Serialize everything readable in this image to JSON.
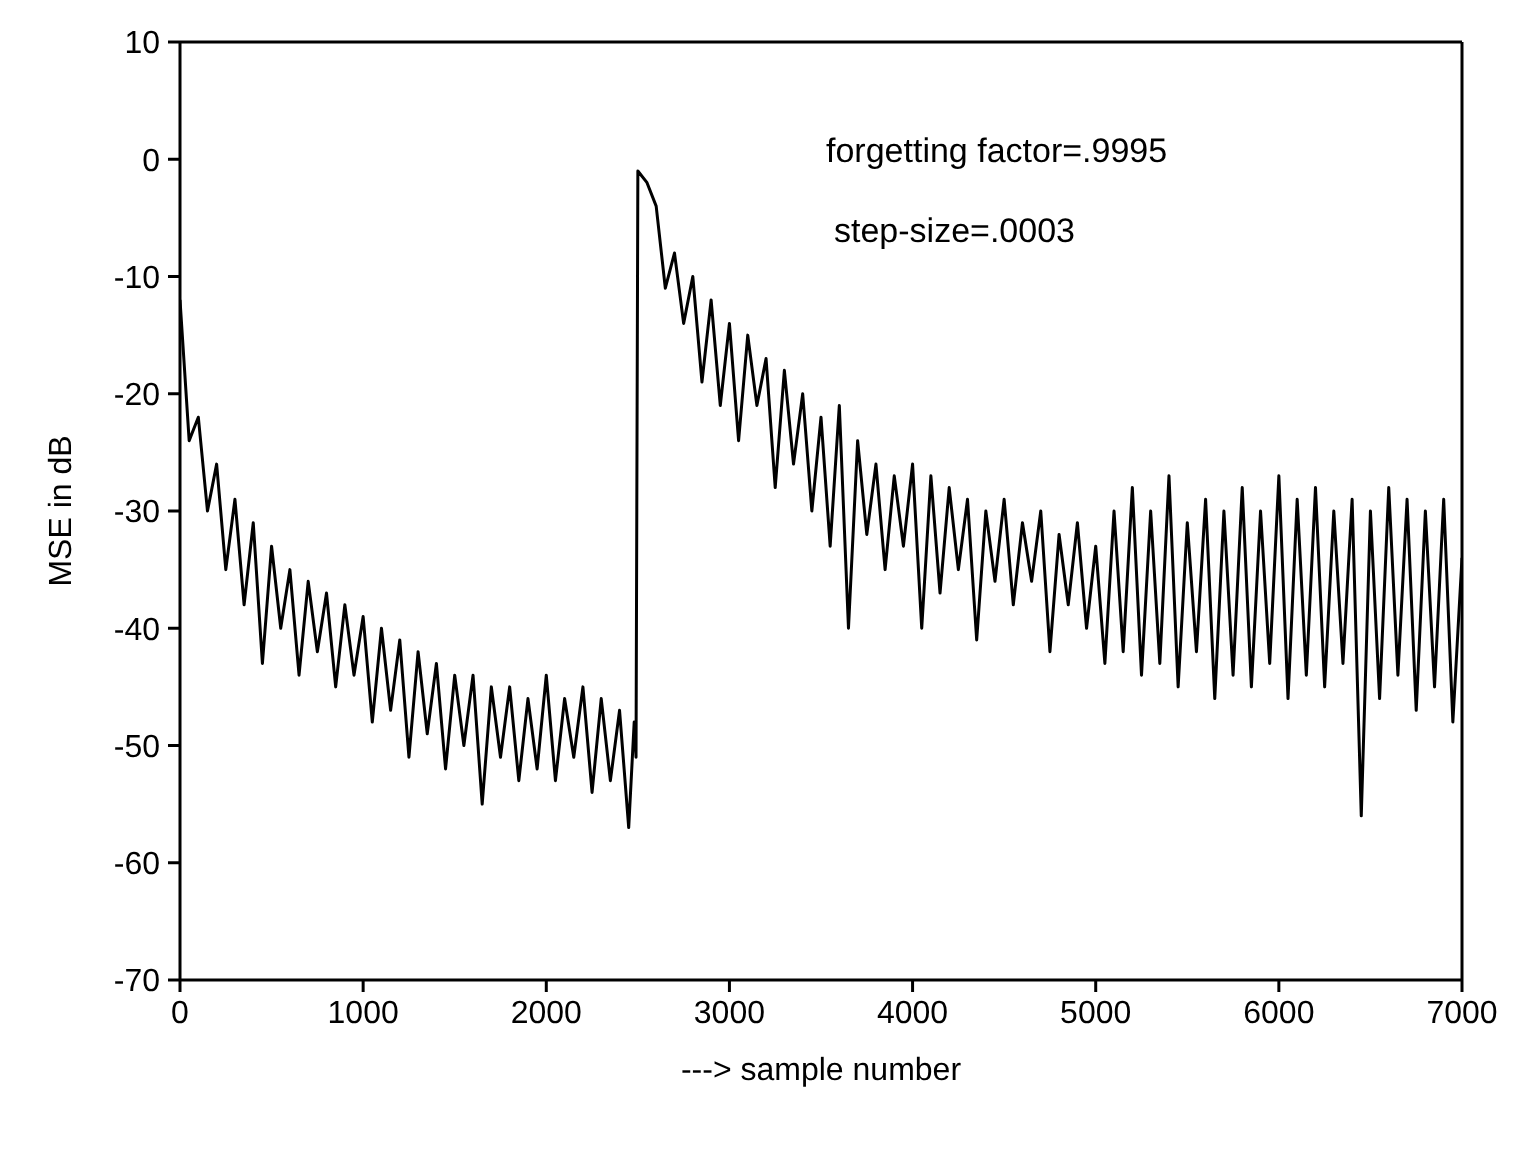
{
  "chart_data": {
    "type": "line",
    "xlabel": "---> sample number",
    "ylabel": "MSE in dB",
    "annotations": [
      "forgetting factor=.9995",
      "step-size=.0003"
    ],
    "xlim": [
      0,
      7000
    ],
    "xticks": [
      0,
      1000,
      2000,
      3000,
      4000,
      5000,
      6000,
      7000
    ],
    "ylim": [
      -70,
      10
    ],
    "yticks": [
      -70,
      -60,
      -50,
      -40,
      -30,
      -20,
      -10,
      0,
      10
    ],
    "grid": false,
    "legend": false,
    "marker": "none",
    "line_style": "solid",
    "x": [
      0,
      50,
      100,
      150,
      200,
      250,
      300,
      350,
      400,
      450,
      500,
      550,
      600,
      650,
      700,
      750,
      800,
      850,
      900,
      950,
      1000,
      1050,
      1100,
      1150,
      1200,
      1250,
      1300,
      1350,
      1400,
      1450,
      1500,
      1550,
      1600,
      1650,
      1700,
      1750,
      1800,
      1850,
      1900,
      1950,
      2000,
      2050,
      2100,
      2150,
      2200,
      2250,
      2300,
      2350,
      2400,
      2450,
      2480,
      2490,
      2500,
      2550,
      2600,
      2650,
      2700,
      2750,
      2800,
      2850,
      2900,
      2950,
      3000,
      3050,
      3100,
      3150,
      3200,
      3250,
      3300,
      3350,
      3400,
      3450,
      3500,
      3550,
      3600,
      3650,
      3700,
      3750,
      3800,
      3850,
      3900,
      3950,
      4000,
      4050,
      4100,
      4150,
      4200,
      4250,
      4300,
      4350,
      4400,
      4450,
      4500,
      4550,
      4600,
      4650,
      4700,
      4750,
      4800,
      4850,
      4900,
      4950,
      5000,
      5050,
      5100,
      5150,
      5200,
      5250,
      5300,
      5350,
      5400,
      5450,
      5500,
      5550,
      5600,
      5650,
      5700,
      5750,
      5800,
      5850,
      5900,
      5950,
      6000,
      6050,
      6100,
      6150,
      6200,
      6250,
      6300,
      6350,
      6400,
      6450,
      6500,
      6550,
      6600,
      6650,
      6700,
      6750,
      6800,
      6850,
      6900,
      6950,
      7000
    ],
    "series": [
      {
        "color": "#000000",
        "values": [
          -12,
          -24,
          -22,
          -30,
          -26,
          -35,
          -29,
          -38,
          -31,
          -43,
          -33,
          -40,
          -35,
          -44,
          -36,
          -42,
          -37,
          -45,
          -38,
          -44,
          -39,
          -48,
          -40,
          -47,
          -41,
          -51,
          -42,
          -49,
          -43,
          -52,
          -44,
          -50,
          -44,
          -55,
          -45,
          -51,
          -45,
          -53,
          -46,
          -52,
          -44,
          -53,
          -46,
          -51,
          -45,
          -54,
          -46,
          -53,
          -47,
          -57,
          -48,
          -51,
          -1,
          -2,
          -4,
          -11,
          -8,
          -14,
          -10,
          -19,
          -12,
          -21,
          -14,
          -24,
          -15,
          -21,
          -17,
          -28,
          -18,
          -26,
          -20,
          -30,
          -22,
          -33,
          -21,
          -40,
          -24,
          -32,
          -26,
          -35,
          -27,
          -33,
          -26,
          -40,
          -27,
          -37,
          -28,
          -35,
          -29,
          -41,
          -30,
          -36,
          -29,
          -38,
          -31,
          -36,
          -30,
          -42,
          -32,
          -38,
          -31,
          -40,
          -33,
          -43,
          -30,
          -42,
          -28,
          -44,
          -30,
          -43,
          -27,
          -45,
          -31,
          -42,
          -29,
          -46,
          -30,
          -44,
          -28,
          -45,
          -30,
          -43,
          -27,
          -46,
          -29,
          -44,
          -28,
          -45,
          -30,
          -43,
          -29,
          -56,
          -30,
          -46,
          -28,
          -44,
          -29,
          -47,
          -30,
          -45,
          -29,
          -48,
          -34
        ]
      }
    ]
  }
}
